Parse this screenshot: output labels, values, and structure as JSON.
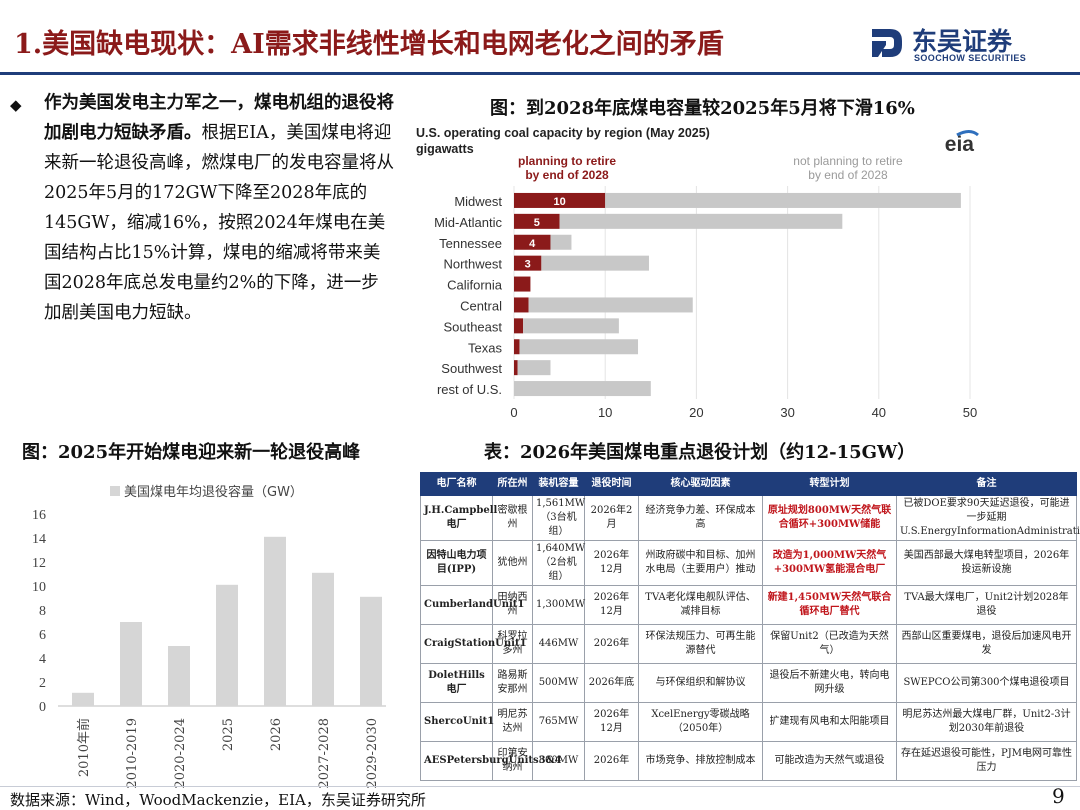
{
  "header": {
    "title": "1.美国缺电现状：AI需求非线性增长和电网老化之间的矛盾",
    "logo_cn": "东吴证券",
    "logo_en": "SOOCHOW SECURITIES"
  },
  "body": {
    "bold_text": "作为美国发电主力军之一，煤电机组的退役将加剧电力短缺矛盾。",
    "normal_text": "根据EIA，美国煤电将迎来新一轮退役高峰，燃煤电厂的发电容量将从2025年5月的172GW下降至2028年底的145GW，缩减16%，按照2024年煤电在美国结构占比15%计算，煤电的缩减将带来美国2028年底总发电量约2%的下降，进一步加剧美国电力短缺。"
  },
  "captions": {
    "right_chart": "图：到2028年底煤电容量较2025年5月将下滑16%",
    "left_chart": "图：2025年开始煤电迎来新一轮退役高峰",
    "table": "表：2026年美国煤电重点退役计划（约12-15GW）"
  },
  "chart_data": [
    {
      "type": "bar",
      "orientation": "horizontal",
      "stacked": true,
      "title": "U.S. operating coal capacity by region (May 2025)",
      "subtitle": "gigawatts",
      "logo_text": "eia",
      "categories": [
        "Midwest",
        "Mid-Atlantic",
        "Tennessee",
        "Northwest",
        "California",
        "Central",
        "Southeast",
        "Texas",
        "Southwest",
        "rest of U.S."
      ],
      "series": [
        {
          "name": "planning to retire by end of 2028",
          "values": [
            10,
            5,
            4,
            3,
            1.8,
            1.6,
            1.0,
            0.6,
            0.4,
            0
          ],
          "color": "#8b1a1a"
        },
        {
          "name": "not planning to retire by end of 2028",
          "values": [
            39,
            31,
            2.3,
            11.8,
            0,
            18,
            10.5,
            13,
            3.6,
            15
          ],
          "color": "#c8c8c8"
        }
      ],
      "data_labels": [
        "10",
        "5",
        "4",
        "3",
        "",
        "",
        "",
        "",
        "",
        ""
      ],
      "legend": {
        "planning": "planning to retire\nby end of 2028",
        "not_planning": "not planning to retire\nby end of 2028"
      },
      "xlim": [
        0,
        50
      ],
      "xticks": [
        0,
        10,
        20,
        30,
        40,
        50
      ]
    },
    {
      "type": "bar",
      "title": "",
      "legend": "美国煤电年均退役容量（GW）",
      "categories": [
        "2010年前",
        "2010-2019",
        "2020-2024",
        "2025",
        "2026",
        "2027-2028",
        "2029-2030"
      ],
      "values": [
        1.1,
        7.0,
        5.0,
        10.1,
        14.1,
        11.1,
        9.1
      ],
      "ylim": [
        0,
        16
      ],
      "yticks": [
        0,
        2,
        4,
        6,
        8,
        10,
        12,
        14,
        16
      ],
      "bar_color": "#d6d6d6"
    }
  ],
  "table": {
    "headers": [
      "电厂名称",
      "所在州",
      "装机容量",
      "退役时间",
      "核心驱动因素",
      "转型计划",
      "备注"
    ],
    "rows": [
      {
        "name": "J.H.Campbell电厂",
        "state": "密歇根州",
        "capacity": "1,561MW（3台机组）",
        "time": "2026年2月",
        "driver": "经济竞争力差、环保成本高",
        "plan": "原址规划800MW天然气联合循环+300MW储能",
        "plan_red": true,
        "note": "已被DOE要求90天延迟退役，可能进一步延期U.S.EnergyInformationAdministration(EIA)"
      },
      {
        "name": "因特山电力项目(IPP)",
        "state": "犹他州",
        "capacity": "1,640MW（2台机组）",
        "time": "2026年12月",
        "driver": "州政府碳中和目标、加州水电局（主要用户）推动",
        "plan": "改造为1,000MW天然气+300MW氢能混合电厂",
        "plan_red": true,
        "note": "美国西部最大煤电转型项目，2026年投运新设施"
      },
      {
        "name": "CumberlandUnit1",
        "state": "田纳西州",
        "capacity": "1,300MW",
        "time": "2026年12月",
        "driver": "TVA老化煤电舰队评估、减排目标",
        "plan": "新建1,450MW天然气联合循环电厂替代",
        "plan_red": true,
        "note": "TVA最大煤电厂，Unit2计划2028年退役"
      },
      {
        "name": "CraigStationUnit1",
        "state": "科罗拉多州",
        "capacity": "446MW",
        "time": "2026年",
        "driver": "环保法规压力、可再生能源替代",
        "plan": "保留Unit2（已改造为天然气）",
        "plan_red": false,
        "note": "西部山区重要煤电，退役后加速风电开发"
      },
      {
        "name": "DoletHills电厂",
        "state": "路易斯安那州",
        "capacity": "500MW",
        "time": "2026年底",
        "driver": "与环保组织和解协议",
        "plan": "退役后不新建火电，转向电网升级",
        "plan_red": false,
        "note": "SWEPCO公司第300个煤电退役项目"
      },
      {
        "name": "ShercoUnit1",
        "state": "明尼苏达州",
        "capacity": "765MW",
        "time": "2026年12月",
        "driver": "XcelEnergy零碳战略（2050年）",
        "plan": "扩建现有风电和太阳能项目",
        "plan_red": false,
        "note": "明尼苏达州最大煤电厂群，Unit2-3计划2030年前退役"
      },
      {
        "name": "AESPetersburgUnits3&4",
        "state": "印第安纳州",
        "capacity": "800MW",
        "time": "2026年",
        "driver": "市场竞争、排放控制成本",
        "plan": "可能改造为天然气或退役",
        "plan_red": false,
        "note": "存在延迟退役可能性，PJM电网可靠性压力"
      }
    ]
  },
  "footer": {
    "source": "数据来源：Wind，WoodMackenzie，EIA，东吴证券研究所",
    "page": "9"
  }
}
